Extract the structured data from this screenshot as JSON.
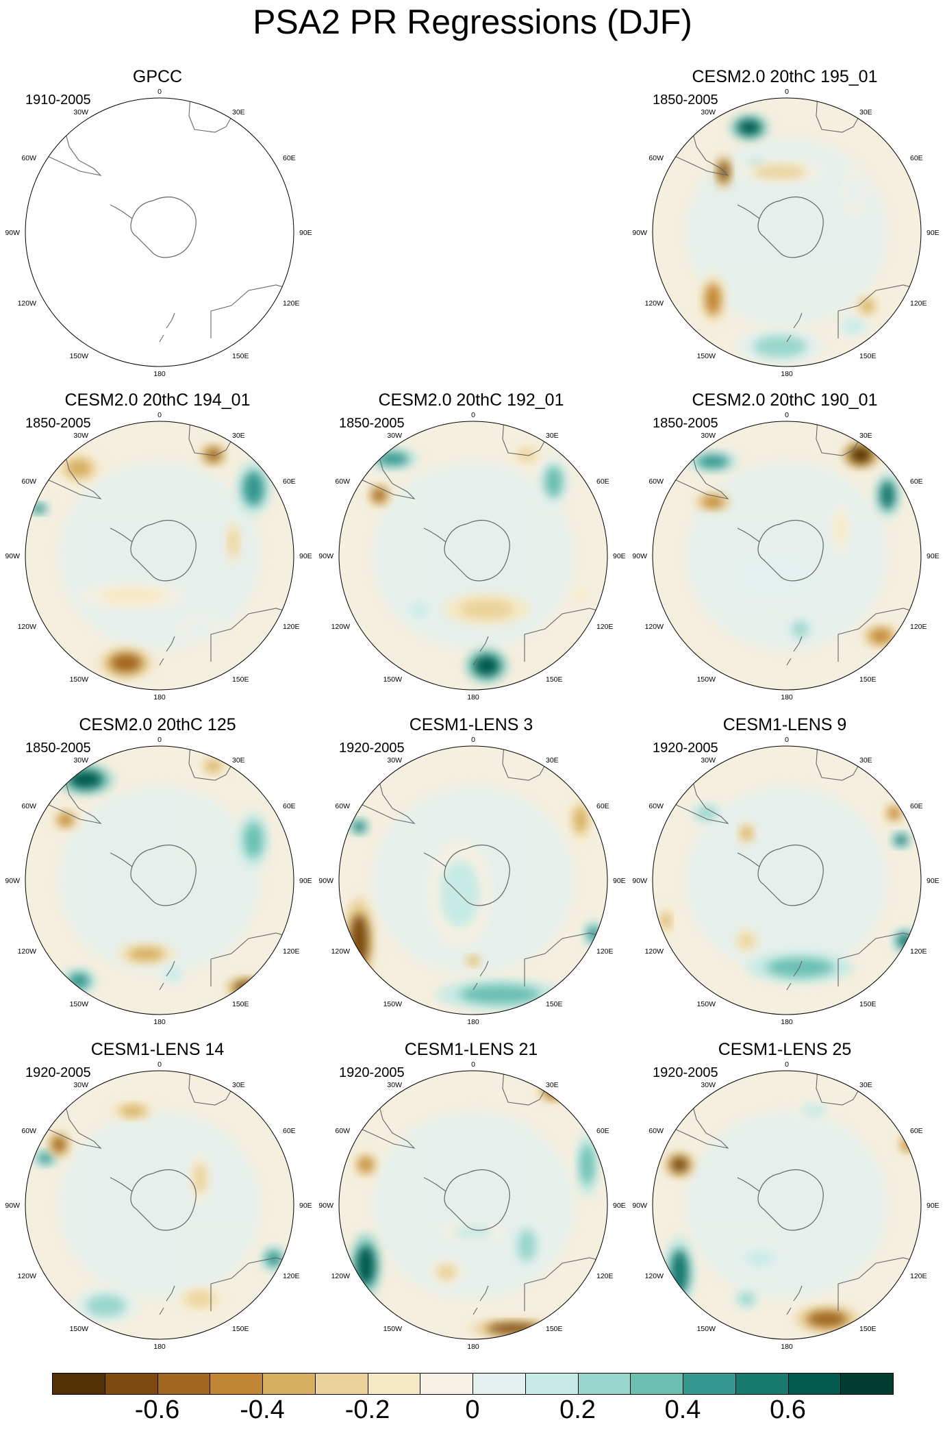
{
  "title": "PSA2 PR Regressions (DJF)",
  "panels": [
    {
      "id": "gpcc",
      "title": "GPCC",
      "years": "1910-2005",
      "row": 0,
      "col": 0,
      "blobs": []
    },
    {
      "id": "c2-195",
      "title": "CESM2.0 20thC 195_01",
      "years": "1850-2005",
      "row": 0,
      "col": 2,
      "blobs": [
        [
          -0.28,
          -0.78,
          0.09,
          0.06,
          0.75
        ],
        [
          -0.47,
          -0.45,
          0.04,
          0.08,
          -0.6
        ],
        [
          -0.22,
          -0.48,
          0.06,
          0.05,
          0.3
        ],
        [
          -0.05,
          -0.45,
          0.2,
          0.05,
          -0.2
        ],
        [
          -0.55,
          0.5,
          0.06,
          0.12,
          -0.4
        ],
        [
          -0.05,
          0.85,
          0.2,
          0.08,
          0.35
        ],
        [
          0.5,
          0.7,
          0.07,
          0.05,
          0.25
        ],
        [
          0.6,
          0.55,
          0.05,
          0.05,
          -0.3
        ],
        [
          0.5,
          -0.3,
          0.05,
          0.12,
          0.15
        ]
      ]
    },
    {
      "id": "c2-194",
      "title": "CESM2.0 20thC 194_01",
      "years": "1850-2005",
      "row": 1,
      "col": 0,
      "blobs": [
        [
          -0.6,
          -0.65,
          0.1,
          0.07,
          -0.35
        ],
        [
          0.4,
          -0.75,
          0.06,
          0.05,
          -0.55
        ],
        [
          0.7,
          -0.5,
          0.08,
          0.13,
          0.55
        ],
        [
          -0.9,
          -0.35,
          0.05,
          0.03,
          0.6
        ],
        [
          -0.25,
          0.8,
          0.12,
          0.07,
          -0.55
        ],
        [
          0.55,
          -0.1,
          0.03,
          0.1,
          -0.25
        ],
        [
          0.3,
          0.55,
          0.1,
          0.05,
          0.15
        ],
        [
          -0.2,
          0.3,
          0.25,
          0.06,
          -0.1
        ]
      ]
    },
    {
      "id": "c2-192",
      "title": "CESM2.0 20thC 192_01",
      "years": "1850-2005",
      "row": 1,
      "col": 1,
      "blobs": [
        [
          -0.6,
          -0.72,
          0.12,
          0.05,
          0.55
        ],
        [
          -0.7,
          -0.45,
          0.05,
          0.05,
          -0.5
        ],
        [
          0.1,
          0.4,
          0.2,
          0.07,
          -0.25
        ],
        [
          0.1,
          0.82,
          0.1,
          0.08,
          0.75
        ],
        [
          0.6,
          -0.55,
          0.07,
          0.12,
          0.4
        ],
        [
          0.4,
          -0.75,
          0.06,
          0.04,
          -0.25
        ],
        [
          -0.4,
          0.4,
          0.06,
          0.05,
          0.25
        ],
        [
          0.8,
          0.3,
          0.04,
          0.06,
          -0.15
        ]
      ]
    },
    {
      "id": "c2-190",
      "title": "CESM2.0 20thC 190_01",
      "years": "1850-2005",
      "row": 1,
      "col": 2,
      "blobs": [
        [
          -0.55,
          -0.7,
          0.12,
          0.05,
          0.55
        ],
        [
          -0.55,
          -0.4,
          0.08,
          0.04,
          -0.45
        ],
        [
          0.55,
          -0.75,
          0.08,
          0.06,
          -0.7
        ],
        [
          0.75,
          -0.45,
          0.06,
          0.11,
          0.65
        ],
        [
          0.7,
          0.6,
          0.08,
          0.05,
          -0.45
        ],
        [
          0.1,
          0.55,
          0.06,
          0.06,
          0.3
        ],
        [
          0.4,
          -0.2,
          0.04,
          0.12,
          -0.15
        ],
        [
          -0.1,
          0.15,
          0.2,
          0.1,
          0.1
        ]
      ]
    },
    {
      "id": "c2-125",
      "title": "CESM2.0 20thC 125",
      "years": "1850-2005",
      "row": 2,
      "col": 0,
      "blobs": [
        [
          -0.55,
          -0.75,
          0.13,
          0.07,
          0.7
        ],
        [
          -0.7,
          -0.45,
          0.06,
          0.05,
          -0.4
        ],
        [
          0.7,
          -0.3,
          0.07,
          0.13,
          0.45
        ],
        [
          -0.6,
          0.75,
          0.08,
          0.06,
          0.5
        ],
        [
          0.65,
          0.8,
          0.1,
          0.05,
          -0.6
        ],
        [
          -0.1,
          0.55,
          0.14,
          0.05,
          -0.3
        ],
        [
          0.1,
          0.7,
          0.05,
          0.05,
          0.25
        ],
        [
          0.4,
          -0.85,
          0.06,
          0.04,
          -0.3
        ]
      ]
    },
    {
      "id": "lens-3",
      "title": "CESM1-LENS 3",
      "years": "1920-2005",
      "row": 2,
      "col": 1,
      "blobs": [
        [
          -0.85,
          0.45,
          0.07,
          0.2,
          -0.65
        ],
        [
          -0.85,
          -0.4,
          0.05,
          0.04,
          0.6
        ],
        [
          0.2,
          0.85,
          0.3,
          0.07,
          0.45
        ],
        [
          0.9,
          0.4,
          0.05,
          0.06,
          0.55
        ],
        [
          0.8,
          -0.45,
          0.05,
          0.1,
          -0.35
        ],
        [
          -0.1,
          0.1,
          0.15,
          0.25,
          0.2
        ],
        [
          0.0,
          0.6,
          0.04,
          0.03,
          -0.3
        ]
      ]
    },
    {
      "id": "lens-9",
      "title": "CESM1-LENS 9",
      "years": "1920-2005",
      "row": 2,
      "col": 2,
      "blobs": [
        [
          0.8,
          -0.5,
          0.05,
          0.05,
          -0.4
        ],
        [
          0.85,
          -0.3,
          0.05,
          0.04,
          0.6
        ],
        [
          0.88,
          0.45,
          0.06,
          0.06,
          0.65
        ],
        [
          0.1,
          0.65,
          0.25,
          0.07,
          0.45
        ],
        [
          -0.3,
          0.45,
          0.05,
          0.05,
          -0.25
        ],
        [
          -0.6,
          -0.5,
          0.08,
          0.05,
          0.3
        ],
        [
          -0.3,
          -0.35,
          0.04,
          0.05,
          -0.3
        ],
        [
          -0.9,
          0.3,
          0.03,
          0.06,
          -0.3
        ]
      ]
    },
    {
      "id": "lens-14",
      "title": "CESM1-LENS 14",
      "years": "1920-2005",
      "row": 3,
      "col": 0,
      "blobs": [
        [
          -0.85,
          -0.35,
          0.06,
          0.04,
          0.55
        ],
        [
          -0.75,
          -0.45,
          0.05,
          0.06,
          -0.5
        ],
        [
          -0.4,
          0.75,
          0.15,
          0.08,
          0.35
        ],
        [
          0.3,
          0.7,
          0.1,
          0.05,
          -0.25
        ],
        [
          0.85,
          0.4,
          0.06,
          0.06,
          0.55
        ],
        [
          -0.2,
          -0.7,
          0.1,
          0.04,
          -0.3
        ],
        [
          0.3,
          -0.2,
          0.05,
          0.12,
          -0.2
        ]
      ]
    },
    {
      "id": "lens-21",
      "title": "CESM1-LENS 21",
      "years": "1920-2005",
      "row": 3,
      "col": 1,
      "blobs": [
        [
          -0.8,
          0.45,
          0.07,
          0.15,
          0.75
        ],
        [
          0.3,
          0.92,
          0.2,
          0.04,
          -0.6
        ],
        [
          0.6,
          -0.85,
          0.07,
          0.05,
          -0.55
        ],
        [
          0.85,
          -0.3,
          0.05,
          0.15,
          0.45
        ],
        [
          0.4,
          0.3,
          0.07,
          0.12,
          0.3
        ],
        [
          -0.8,
          -0.3,
          0.05,
          0.05,
          -0.45
        ],
        [
          -0.2,
          0.5,
          0.08,
          0.06,
          -0.2
        ],
        [
          0.0,
          0.2,
          0.15,
          0.05,
          0.2
        ]
      ]
    },
    {
      "id": "lens-25",
      "title": "CESM1-LENS 25",
      "years": "1920-2005",
      "row": 3,
      "col": 2,
      "blobs": [
        [
          -0.8,
          -0.3,
          0.07,
          0.06,
          -0.6
        ],
        [
          -0.8,
          0.5,
          0.07,
          0.17,
          0.65
        ],
        [
          0.3,
          0.85,
          0.15,
          0.06,
          -0.55
        ],
        [
          0.9,
          -0.45,
          0.04,
          0.04,
          -0.45
        ],
        [
          -0.2,
          0.4,
          0.1,
          0.05,
          0.25
        ],
        [
          0.2,
          -0.7,
          0.1,
          0.05,
          0.2
        ],
        [
          -0.3,
          0.7,
          0.06,
          0.05,
          0.3
        ]
      ]
    }
  ],
  "map_labels": {
    "top": "0",
    "bottom": "180",
    "left_top": "30W",
    "left_upper": "60W",
    "left_mid": "90W",
    "left_lower": "120W",
    "left_bottom": "150W",
    "right_top": "30E",
    "right_upper": "60E",
    "right_mid": "90E",
    "right_lower": "120E",
    "right_bottom": "150E"
  },
  "colorbar": {
    "colors": [
      "#543005",
      "#7d4b10",
      "#a0651f",
      "#c18634",
      "#d5ae60",
      "#ead29a",
      "#f6e8c3",
      "#f5f1e4",
      "#e4f0ee",
      "#c7eae5",
      "#98d6cb",
      "#6bbfb1",
      "#35978f",
      "#18796f",
      "#035b50",
      "#003c30"
    ],
    "labels": [
      "-0.6",
      "-0.4",
      "-0.2",
      "0",
      "0.2",
      "0.4",
      "0.6"
    ]
  }
}
